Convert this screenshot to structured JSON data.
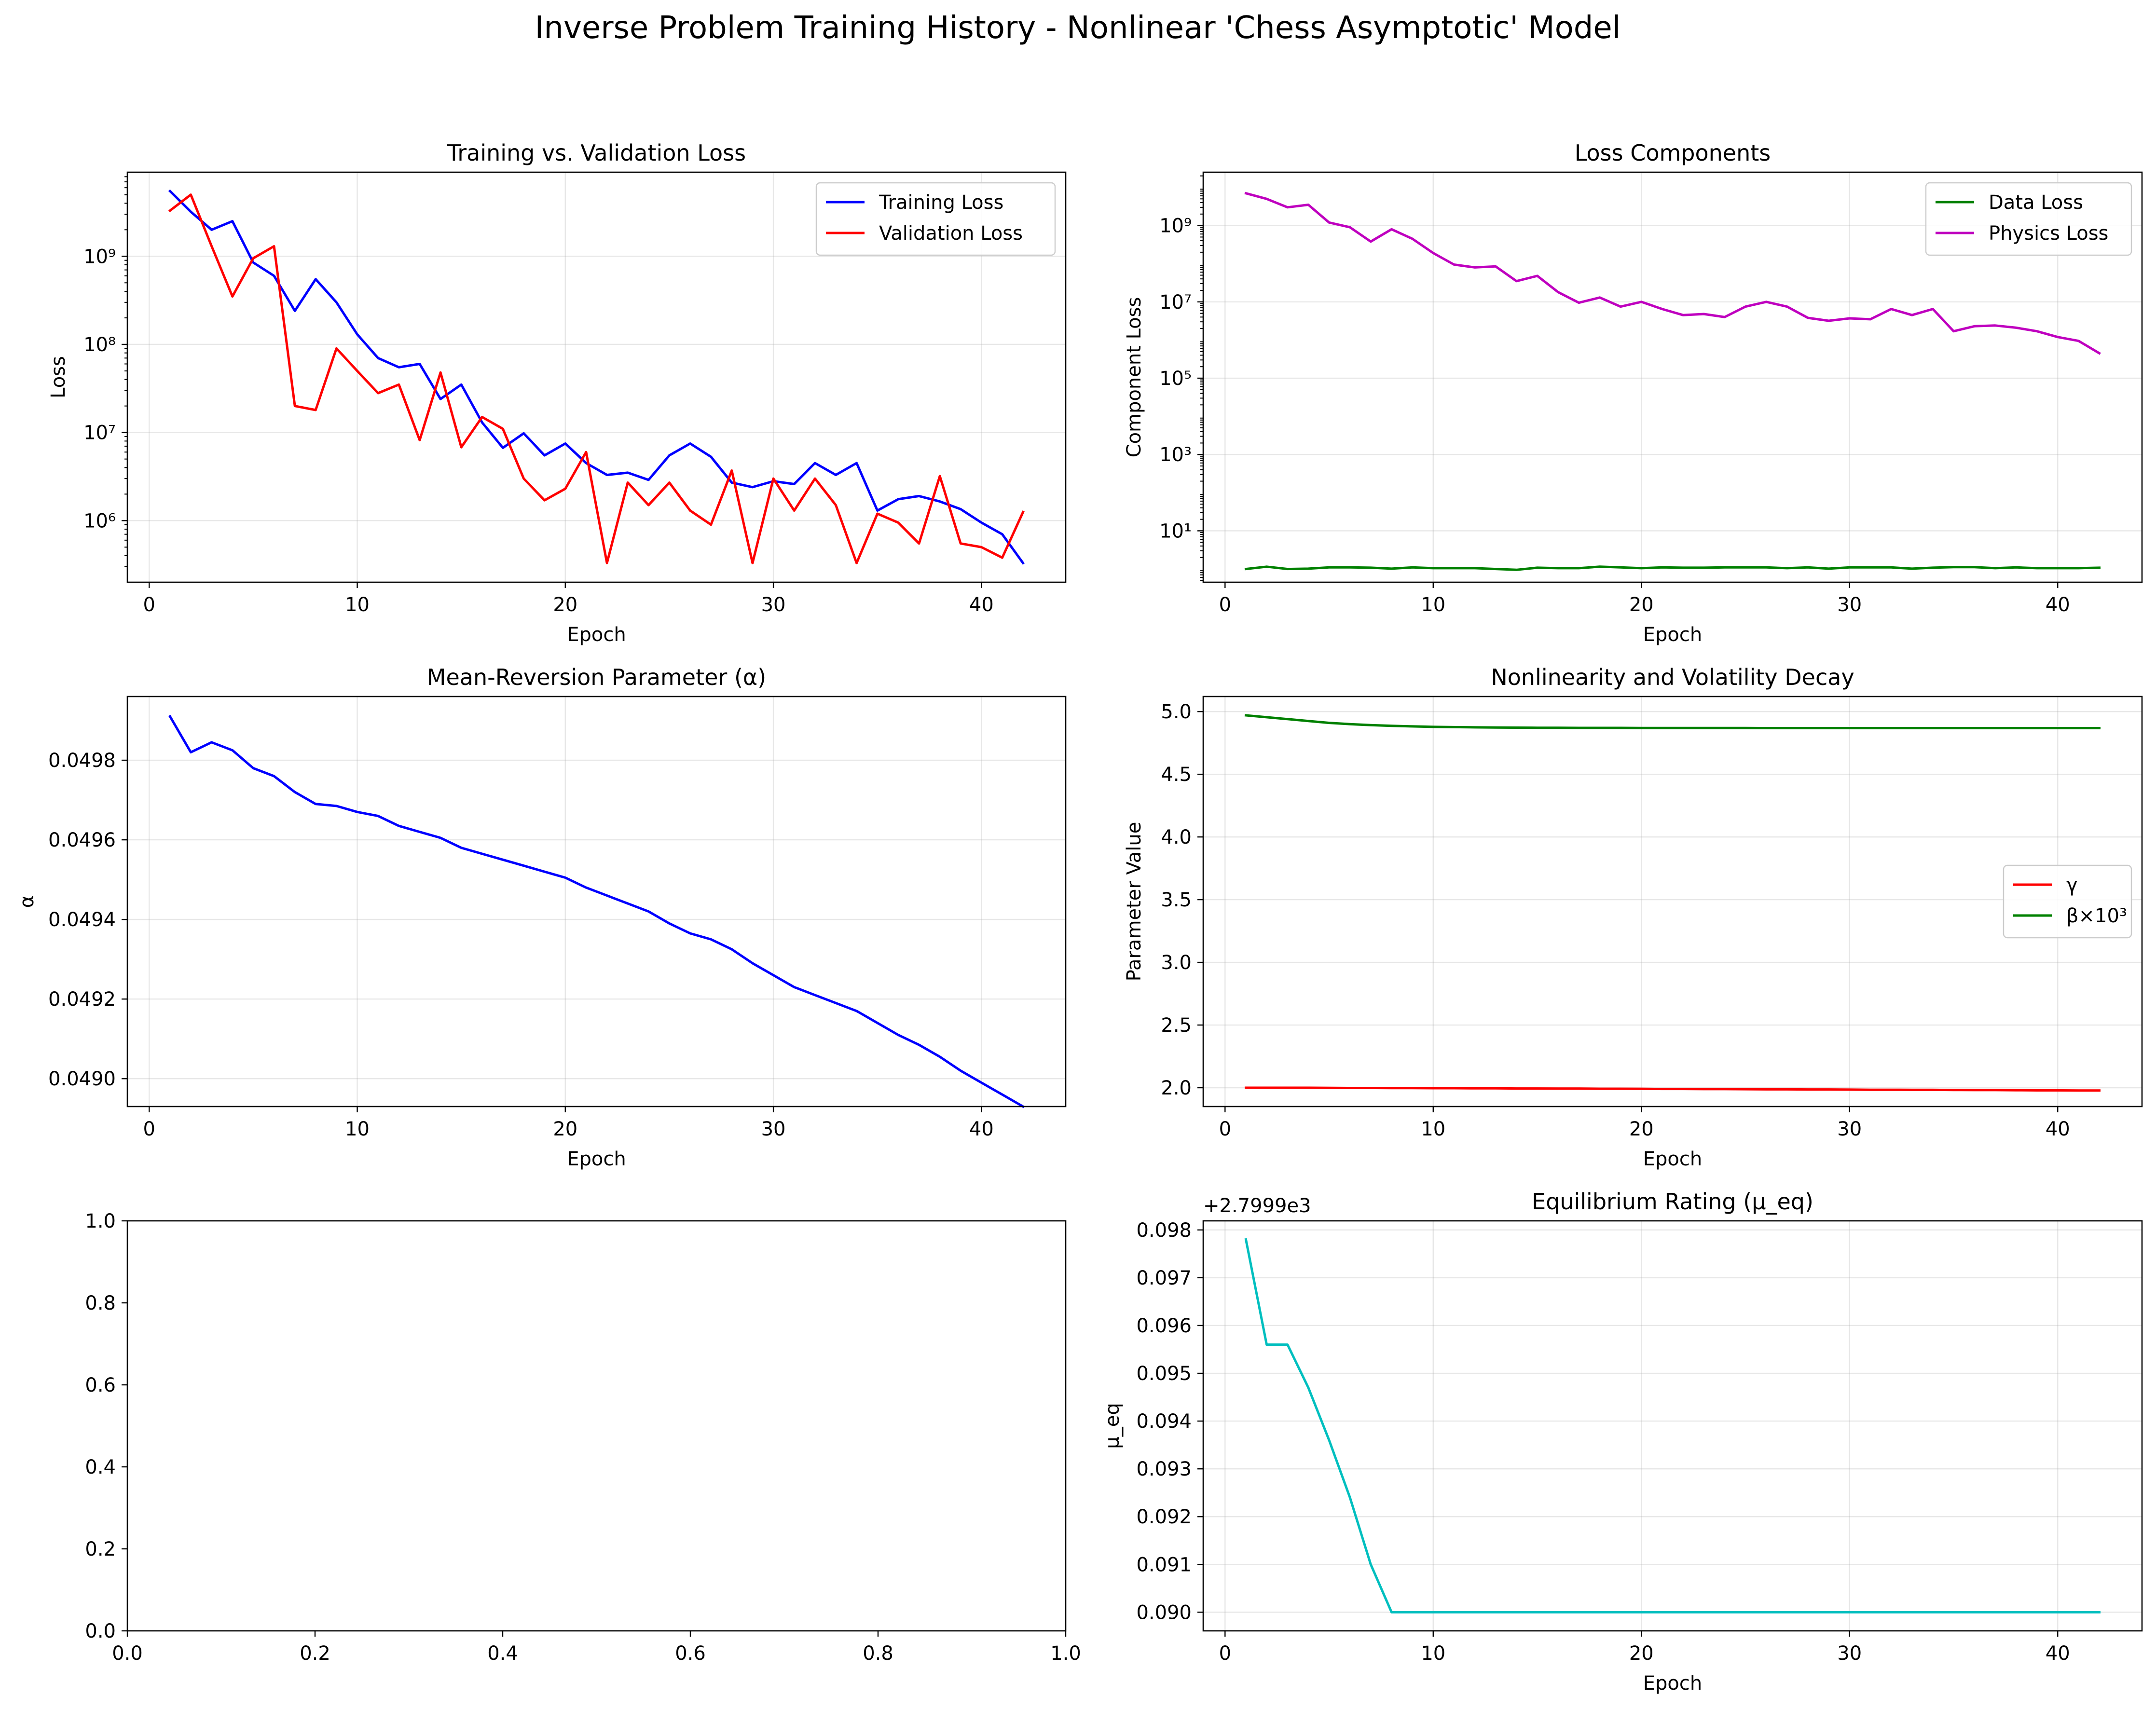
{
  "figure": {
    "suptitle": "Inverse Problem Training History - Nonlinear 'Chess Asymptotic' Model"
  },
  "chart_data": [
    {
      "id": "loss",
      "type": "line",
      "title": "Training vs. Validation Loss",
      "xlabel": "Epoch",
      "ylabel": "Loss",
      "xlim": [
        -1.05,
        44.05
      ],
      "ylim": [
        200000.0,
        9000000000.0
      ],
      "yscale": "log",
      "grid": true,
      "legend": "top-right",
      "xticks": [
        0,
        10,
        20,
        30,
        40
      ],
      "yticks": [
        {
          "v": 1000000.0,
          "label": "10⁶"
        },
        {
          "v": 10000000.0,
          "label": "10⁷"
        },
        {
          "v": 100000000.0,
          "label": "10⁸"
        },
        {
          "v": 1000000000.0,
          "label": "10⁹"
        }
      ],
      "series": [
        {
          "name": "Training Loss",
          "color": "#0000ff",
          "values": [
            5500000000.0,
            3200000000.0,
            2000000000.0,
            2500000000.0,
            850000000.0,
            600000000.0,
            240000000.0,
            550000000.0,
            300000000.0,
            130000000.0,
            70000000.0,
            55000000.0,
            60000000.0,
            24000000.0,
            35000000.0,
            13000000.0,
            6700000.0,
            9800000.0,
            5500000.0,
            7500000.0,
            4500000.0,
            3300000.0,
            3500000.0,
            2900000.0,
            5500000.0,
            7500000.0,
            5300000.0,
            2700000.0,
            2400000.0,
            2800000.0,
            2600000.0,
            4500000.0,
            3300000.0,
            4500000.0,
            1300000.0,
            1750000.0,
            1900000.0,
            1650000.0,
            1350000.0,
            950000.0,
            700000.0,
            330000.0
          ]
        },
        {
          "name": "Validation Loss",
          "color": "#ff0000",
          "values": [
            3300000000.0,
            5000000000.0,
            1300000000.0,
            350000000.0,
            950000000.0,
            1300000000.0,
            20000000.0,
            18000000.0,
            90000000.0,
            50000000.0,
            28000000.0,
            35000000.0,
            8200000.0,
            48000000.0,
            6800000.0,
            15000000.0,
            11000000.0,
            3000000.0,
            1700000.0,
            2300000.0,
            6000000.0,
            330000.0,
            2700000.0,
            1500000.0,
            2700000.0,
            1300000.0,
            900000.0,
            3700000.0,
            330000.0,
            3000000.0,
            1300000.0,
            3000000.0,
            1500000.0,
            330000.0,
            1200000.0,
            950000.0,
            550000.0,
            3200000.0,
            550000.0,
            500000.0,
            380000.0,
            1250000.0
          ]
        }
      ]
    },
    {
      "id": "components",
      "type": "line",
      "title": "Loss Components",
      "xlabel": "Epoch",
      "ylabel": "Component Loss",
      "xlim": [
        -1.05,
        44.05
      ],
      "ylim": [
        0.45,
        25000000000.0
      ],
      "yscale": "log",
      "grid": true,
      "legend": "top-right",
      "xticks": [
        0,
        10,
        20,
        30,
        40
      ],
      "yticks": [
        {
          "v": 10,
          "label": "10¹"
        },
        {
          "v": 1000.0,
          "label": "10³"
        },
        {
          "v": 100000.0,
          "label": "10⁵"
        },
        {
          "v": 10000000.0,
          "label": "10⁷"
        },
        {
          "v": 1000000000.0,
          "label": "10⁹"
        }
      ],
      "series": [
        {
          "name": "Data Loss",
          "color": "#008000",
          "values": [
            1.0,
            1.15,
            1.0,
            1.02,
            1.1,
            1.1,
            1.08,
            1.02,
            1.1,
            1.05,
            1.05,
            1.05,
            1.0,
            0.95,
            1.08,
            1.05,
            1.05,
            1.15,
            1.1,
            1.05,
            1.1,
            1.08,
            1.08,
            1.1,
            1.1,
            1.1,
            1.05,
            1.1,
            1.02,
            1.1,
            1.1,
            1.1,
            1.02,
            1.08,
            1.12,
            1.12,
            1.05,
            1.1,
            1.05,
            1.05,
            1.05,
            1.08
          ]
        },
        {
          "name": "Physics Loss",
          "color": "#bf00bf",
          "values": [
            7000000000.0,
            5000000000.0,
            3000000000.0,
            3500000000.0,
            1200000000.0,
            900000000.0,
            380000000.0,
            800000000.0,
            450000000.0,
            190000000.0,
            95000000.0,
            80000000.0,
            85000000.0,
            35000000.0,
            48000000.0,
            18000000.0,
            9500000.0,
            13000000.0,
            7500000.0,
            10000000.0,
            6500000.0,
            4500000.0,
            4800000.0,
            4000000.0,
            7500000.0,
            10000000.0,
            7500000.0,
            3800000.0,
            3200000.0,
            3700000.0,
            3500000.0,
            6500000.0,
            4500000.0,
            6500000.0,
            1700000.0,
            2300000.0,
            2400000.0,
            2100000.0,
            1700000.0,
            1200000.0,
            950000.0,
            450000.0
          ]
        }
      ]
    },
    {
      "id": "alpha",
      "type": "line",
      "title": "Mean-Reversion Parameter (α)",
      "xlabel": "Epoch",
      "ylabel": "α",
      "xlim": [
        -1.05,
        44.05
      ],
      "ylim": [
        0.04893,
        0.04996
      ],
      "yscale": "linear",
      "grid": true,
      "legend": "none",
      "xticks": [
        0,
        10,
        20,
        30,
        40
      ],
      "yticks": [
        {
          "v": 0.049,
          "label": "0.0490"
        },
        {
          "v": 0.0492,
          "label": "0.0492"
        },
        {
          "v": 0.0494,
          "label": "0.0494"
        },
        {
          "v": 0.0496,
          "label": "0.0496"
        },
        {
          "v": 0.0498,
          "label": "0.0498"
        }
      ],
      "series": [
        {
          "name": "",
          "color": "#0000ff",
          "values": [
            0.04991,
            0.04982,
            0.049845,
            0.049825,
            0.04978,
            0.04976,
            0.04972,
            0.04969,
            0.049685,
            0.04967,
            0.04966,
            0.049635,
            0.04962,
            0.049605,
            0.04958,
            0.049565,
            0.04955,
            0.049535,
            0.04952,
            0.049505,
            0.04948,
            0.04946,
            0.04944,
            0.04942,
            0.04939,
            0.049365,
            0.04935,
            0.049325,
            0.04929,
            0.04926,
            0.04923,
            0.04921,
            0.04919,
            0.04917,
            0.04914,
            0.04911,
            0.049085,
            0.049055,
            0.04902,
            0.04899,
            0.04896,
            0.04893
          ]
        }
      ]
    },
    {
      "id": "nonlinearity",
      "type": "line",
      "title": "Nonlinearity and Volatility Decay",
      "xlabel": "Epoch",
      "ylabel": "Parameter Value",
      "xlim": [
        -1.05,
        44.05
      ],
      "ylim": [
        1.85,
        5.12
      ],
      "yscale": "linear",
      "grid": true,
      "legend": "center-right",
      "xticks": [
        0,
        10,
        20,
        30,
        40
      ],
      "yticks": [
        {
          "v": 2.0,
          "label": "2.0"
        },
        {
          "v": 2.5,
          "label": "2.5"
        },
        {
          "v": 3.0,
          "label": "3.0"
        },
        {
          "v": 3.5,
          "label": "3.5"
        },
        {
          "v": 4.0,
          "label": "4.0"
        },
        {
          "v": 4.5,
          "label": "4.5"
        },
        {
          "v": 5.0,
          "label": "5.0"
        }
      ],
      "series": [
        {
          "name": "γ",
          "color": "#ff0000",
          "values": [
            2.0,
            2.0,
            2.0,
            2.0,
            1.999,
            1.998,
            1.998,
            1.997,
            1.997,
            1.996,
            1.996,
            1.995,
            1.995,
            1.994,
            1.994,
            1.993,
            1.993,
            1.992,
            1.992,
            1.991,
            1.99,
            1.99,
            1.989,
            1.989,
            1.988,
            1.987,
            1.987,
            1.986,
            1.986,
            1.985,
            1.984,
            1.984,
            1.983,
            1.983,
            1.982,
            1.981,
            1.981,
            1.98,
            1.979,
            1.979,
            1.978,
            1.978
          ]
        },
        {
          "name": "β×10³",
          "color": "#008000",
          "values": [
            4.97,
            4.955,
            4.94,
            4.925,
            4.91,
            4.9,
            4.892,
            4.886,
            4.882,
            4.878,
            4.876,
            4.874,
            4.873,
            4.872,
            4.871,
            4.871,
            4.87,
            4.87,
            4.87,
            4.869,
            4.869,
            4.869,
            4.869,
            4.869,
            4.869,
            4.868,
            4.868,
            4.868,
            4.868,
            4.868,
            4.868,
            4.868,
            4.868,
            4.868,
            4.868,
            4.868,
            4.868,
            4.868,
            4.868,
            4.868,
            4.868,
            4.868
          ]
        }
      ]
    },
    {
      "id": "empty",
      "type": "line",
      "title": "",
      "xlabel": "",
      "ylabel": "",
      "xlim": [
        0.0,
        1.0
      ],
      "ylim": [
        0.0,
        1.0
      ],
      "yscale": "linear",
      "grid": false,
      "legend": "none",
      "xticks": [
        {
          "v": 0.0,
          "label": "0.0"
        },
        {
          "v": 0.2,
          "label": "0.2"
        },
        {
          "v": 0.4,
          "label": "0.4"
        },
        {
          "v": 0.6,
          "label": "0.6"
        },
        {
          "v": 0.8,
          "label": "0.8"
        },
        {
          "v": 1.0,
          "label": "1.0"
        }
      ],
      "yticks": [
        {
          "v": 0.0,
          "label": "0.0"
        },
        {
          "v": 0.2,
          "label": "0.2"
        },
        {
          "v": 0.4,
          "label": "0.4"
        },
        {
          "v": 0.6,
          "label": "0.6"
        },
        {
          "v": 0.8,
          "label": "0.8"
        },
        {
          "v": 1.0,
          "label": "1.0"
        }
      ],
      "series": []
    },
    {
      "id": "mu",
      "type": "line",
      "title": "Equilibrium Rating (μ_eq)",
      "xlabel": "Epoch",
      "ylabel": "μ_eq",
      "xlim": [
        -1.05,
        44.05
      ],
      "ylim": [
        0.08961,
        0.09819
      ],
      "yscale": "linear",
      "offset": "+2.7999e3",
      "grid": true,
      "legend": "none",
      "xticks": [
        0,
        10,
        20,
        30,
        40
      ],
      "yticks": [
        {
          "v": 0.09,
          "label": "0.090"
        },
        {
          "v": 0.091,
          "label": "0.091"
        },
        {
          "v": 0.092,
          "label": "0.092"
        },
        {
          "v": 0.093,
          "label": "0.093"
        },
        {
          "v": 0.094,
          "label": "0.094"
        },
        {
          "v": 0.095,
          "label": "0.095"
        },
        {
          "v": 0.096,
          "label": "0.096"
        },
        {
          "v": 0.097,
          "label": "0.097"
        },
        {
          "v": 0.098,
          "label": "0.098"
        }
      ],
      "series": [
        {
          "name": "",
          "color": "#00bfbf",
          "values": [
            0.0978,
            0.0956,
            0.0956,
            0.0947,
            0.0936,
            0.0924,
            0.091,
            0.09,
            0.09,
            0.09,
            0.09,
            0.09,
            0.09,
            0.09,
            0.09,
            0.09,
            0.09,
            0.09,
            0.09,
            0.09,
            0.09,
            0.09,
            0.09,
            0.09,
            0.09,
            0.09,
            0.09,
            0.09,
            0.09,
            0.09,
            0.09,
            0.09,
            0.09,
            0.09,
            0.09,
            0.09,
            0.09,
            0.09,
            0.09,
            0.09,
            0.09,
            0.09
          ]
        }
      ]
    }
  ]
}
